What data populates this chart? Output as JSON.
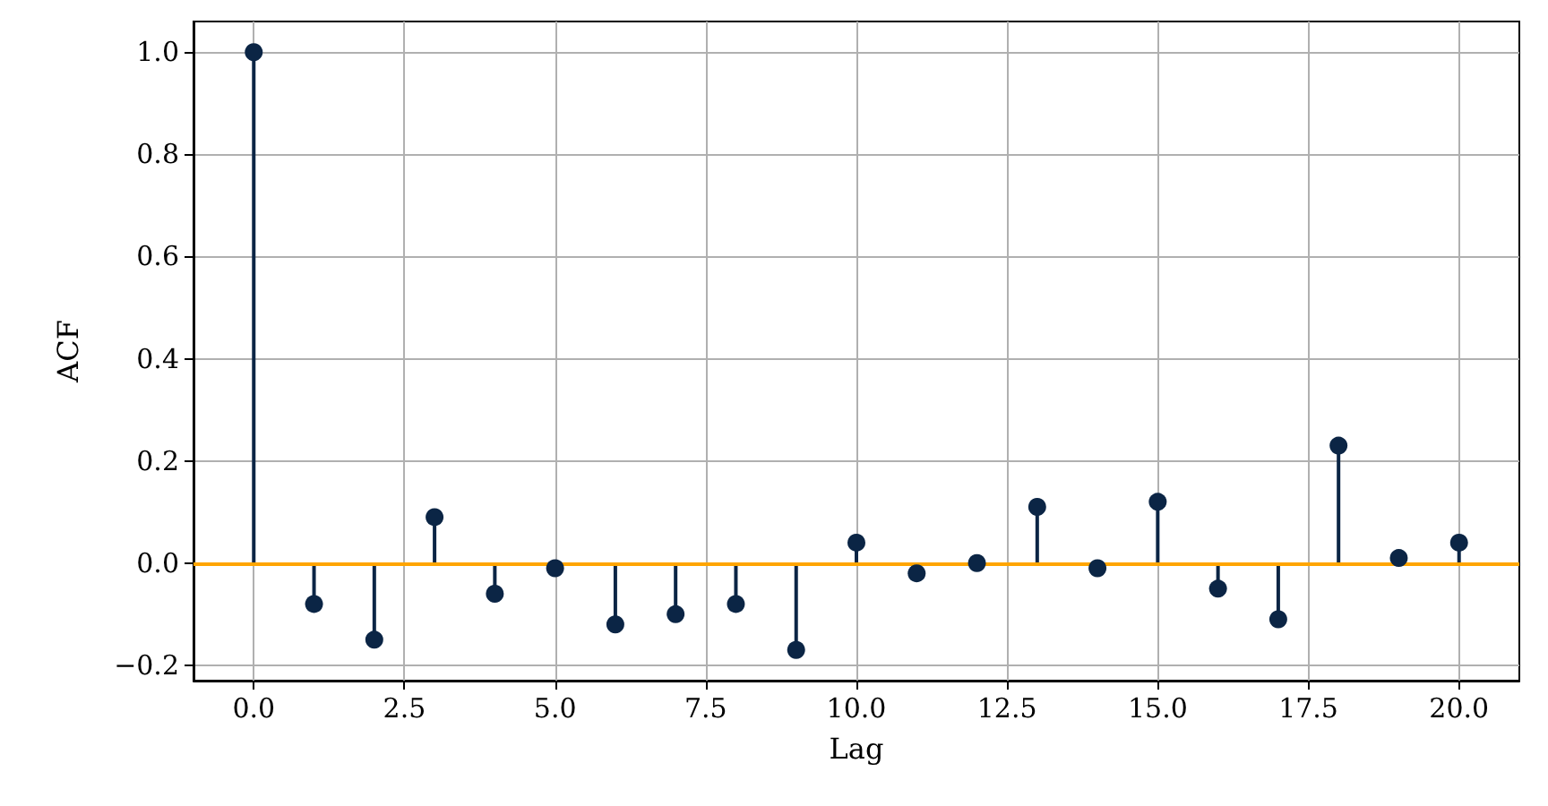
{
  "chart_data": {
    "type": "lollipop",
    "xlabel": "Lag",
    "ylabel": "ACF",
    "x": [
      0,
      1,
      2,
      3,
      4,
      5,
      6,
      7,
      8,
      9,
      10,
      11,
      12,
      13,
      14,
      15,
      16,
      17,
      18,
      19,
      20
    ],
    "series": [
      {
        "color": "#0b2545",
        "values": [
          1.0,
          -0.08,
          -0.15,
          0.09,
          -0.06,
          -0.01,
          -0.12,
          -0.1,
          -0.08,
          -0.17,
          0.04,
          -0.02,
          0.0,
          0.11,
          -0.01,
          0.12,
          -0.05,
          -0.11,
          0.23,
          0.01,
          0.04
        ]
      }
    ],
    "xlim": [
      -1,
      21
    ],
    "xticks": [
      {
        "value": 0,
        "label": "0.0"
      },
      {
        "value": 2.5,
        "label": "2.5"
      },
      {
        "value": 5,
        "label": "5.0"
      },
      {
        "value": 7.5,
        "label": "7.5"
      },
      {
        "value": 10,
        "label": "10.0"
      },
      {
        "value": 12.5,
        "label": "12.5"
      },
      {
        "value": 15,
        "label": "15.0"
      },
      {
        "value": 17.5,
        "label": "17.5"
      },
      {
        "value": 20,
        "label": "20.0"
      }
    ],
    "ylim": [
      -0.23,
      1.06
    ],
    "yticks": [
      {
        "value": -0.2,
        "label": "−0.2"
      },
      {
        "value": 0,
        "label": "0.0"
      },
      {
        "value": 0.2,
        "label": "0.2"
      },
      {
        "value": 0.4,
        "label": "0.4"
      },
      {
        "value": 0.6,
        "label": "0.6"
      },
      {
        "value": 0.8,
        "label": "0.8"
      },
      {
        "value": 1.0,
        "label": "1.0"
      }
    ],
    "ref_lines": [
      {
        "axis": "y",
        "value": 0,
        "color": "#ffa500"
      }
    ],
    "grid": true,
    "marker": "circle"
  }
}
